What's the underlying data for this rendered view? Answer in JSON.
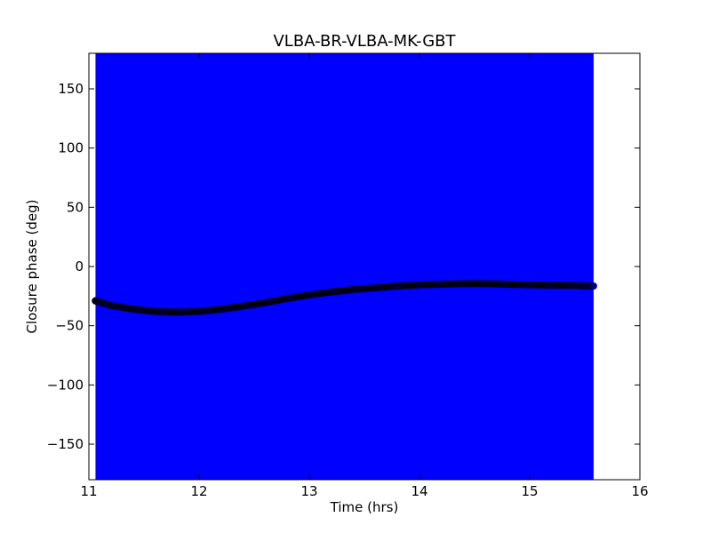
{
  "chart_data": {
    "type": "scatter",
    "title": "VLBA-BR-VLBA-MK-GBT",
    "xlabel": "Time (hrs)",
    "ylabel": "Closure phase (deg)",
    "xlim": [
      11,
      16
    ],
    "ylim": [
      -180,
      180
    ],
    "x_ticks": [
      11,
      12,
      13,
      14,
      15,
      16
    ],
    "y_ticks": [
      -150,
      -100,
      -50,
      0,
      50,
      100,
      150
    ],
    "x_tick_labels": [
      "11",
      "12",
      "13",
      "14",
      "15",
      "16"
    ],
    "y_tick_labels": [
      "−150",
      "−100",
      "−50",
      "0",
      "50",
      "100",
      "150"
    ],
    "grid": false,
    "legend": "none",
    "errorbar_range": {
      "x": [
        11.06,
        15.58
      ],
      "y": [
        -180,
        180
      ],
      "color": "#0000ff"
    },
    "series": [
      {
        "marker_color": "#000000",
        "edge_color": "#000080",
        "points": [
          [
            11.06,
            -29
          ],
          [
            11.2,
            -33
          ],
          [
            11.4,
            -36
          ],
          [
            11.6,
            -38
          ],
          [
            11.8,
            -38.5
          ],
          [
            12.0,
            -38
          ],
          [
            12.2,
            -36
          ],
          [
            12.4,
            -33.5
          ],
          [
            12.6,
            -30.5
          ],
          [
            12.8,
            -27
          ],
          [
            13.0,
            -24
          ],
          [
            13.2,
            -21.5
          ],
          [
            13.4,
            -19.5
          ],
          [
            13.6,
            -18
          ],
          [
            13.8,
            -16.5
          ],
          [
            14.0,
            -15.5
          ],
          [
            14.2,
            -15
          ],
          [
            14.4,
            -14.5
          ],
          [
            14.6,
            -14.5
          ],
          [
            14.8,
            -15
          ],
          [
            15.0,
            -15.5
          ],
          [
            15.2,
            -15.8
          ],
          [
            15.4,
            -16
          ],
          [
            15.58,
            -16.5
          ]
        ]
      }
    ]
  }
}
